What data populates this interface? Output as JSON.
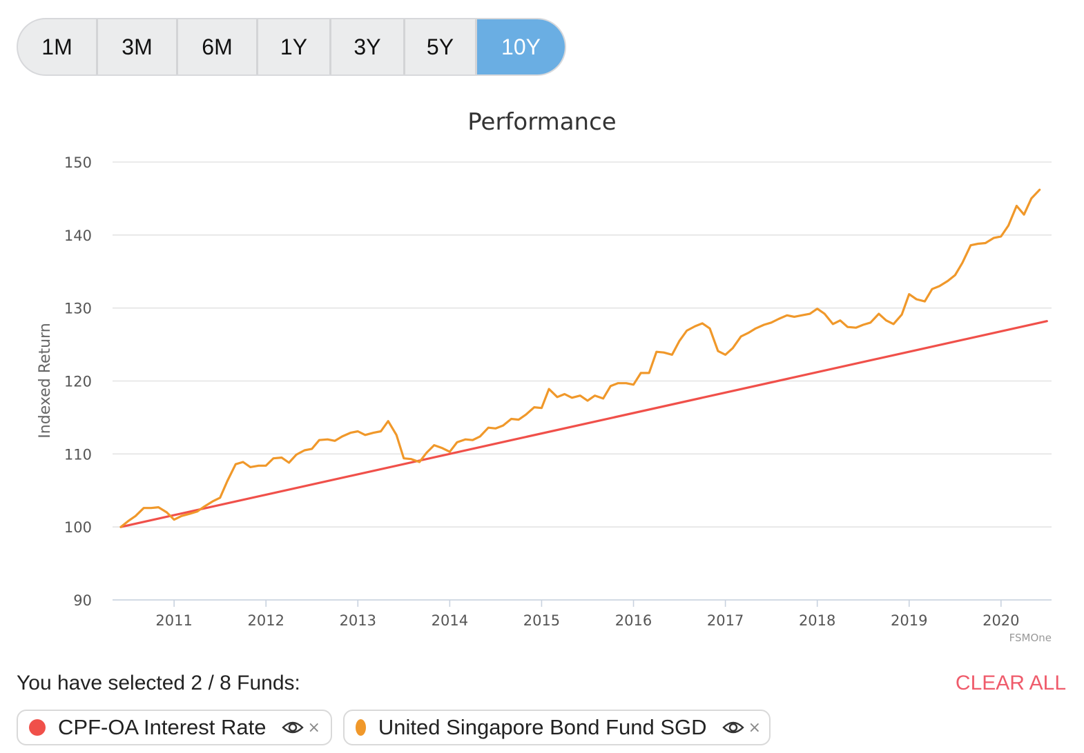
{
  "range_buttons": [
    {
      "label": "1M",
      "active": false
    },
    {
      "label": "3M",
      "active": false
    },
    {
      "label": "6M",
      "active": false
    },
    {
      "label": "1Y",
      "active": false
    },
    {
      "label": "3Y",
      "active": false
    },
    {
      "label": "5Y",
      "active": false
    },
    {
      "label": "10Y",
      "active": true
    }
  ],
  "chart_data": {
    "type": "line",
    "title": "Performance",
    "xlabel": "",
    "ylabel": "Indexed Return",
    "credit": "FSMOne",
    "ylim": [
      90,
      150
    ],
    "yticks": [
      90,
      100,
      110,
      120,
      130,
      140,
      150
    ],
    "xlim": [
      2010.33,
      2020.55
    ],
    "xticks": [
      2011,
      2012,
      2013,
      2014,
      2015,
      2016,
      2017,
      2018,
      2019,
      2020
    ],
    "grid": true,
    "series": [
      {
        "name": "CPF-OA Interest Rate",
        "color": "#f0504a",
        "points": [
          [
            2010.42,
            100.0
          ],
          [
            2020.5,
            128.2
          ]
        ]
      },
      {
        "name": "United Singapore Bond Fund SGD",
        "color": "#f0982a",
        "points": [
          [
            2010.42,
            100.0
          ],
          [
            2010.5,
            100.8
          ],
          [
            2010.58,
            101.5
          ],
          [
            2010.67,
            102.6
          ],
          [
            2010.75,
            102.6
          ],
          [
            2010.83,
            102.7
          ],
          [
            2010.92,
            102.0
          ],
          [
            2011.0,
            101.0
          ],
          [
            2011.08,
            101.5
          ],
          [
            2011.17,
            101.8
          ],
          [
            2011.25,
            102.1
          ],
          [
            2011.33,
            102.8
          ],
          [
            2011.42,
            103.5
          ],
          [
            2011.5,
            104.0
          ],
          [
            2011.58,
            106.3
          ],
          [
            2011.67,
            108.6
          ],
          [
            2011.75,
            108.9
          ],
          [
            2011.83,
            108.2
          ],
          [
            2011.92,
            108.4
          ],
          [
            2012.0,
            108.4
          ],
          [
            2012.08,
            109.4
          ],
          [
            2012.17,
            109.5
          ],
          [
            2012.25,
            108.8
          ],
          [
            2012.33,
            109.9
          ],
          [
            2012.42,
            110.5
          ],
          [
            2012.5,
            110.7
          ],
          [
            2012.58,
            111.9
          ],
          [
            2012.67,
            112.0
          ],
          [
            2012.75,
            111.8
          ],
          [
            2012.83,
            112.4
          ],
          [
            2012.92,
            112.9
          ],
          [
            2013.0,
            113.1
          ],
          [
            2013.08,
            112.6
          ],
          [
            2013.17,
            112.9
          ],
          [
            2013.25,
            113.1
          ],
          [
            2013.33,
            114.5
          ],
          [
            2013.42,
            112.6
          ],
          [
            2013.5,
            109.4
          ],
          [
            2013.58,
            109.3
          ],
          [
            2013.67,
            108.9
          ],
          [
            2013.75,
            110.2
          ],
          [
            2013.83,
            111.2
          ],
          [
            2013.92,
            110.8
          ],
          [
            2014.0,
            110.3
          ],
          [
            2014.08,
            111.6
          ],
          [
            2014.17,
            112.0
          ],
          [
            2014.25,
            111.9
          ],
          [
            2014.33,
            112.4
          ],
          [
            2014.42,
            113.6
          ],
          [
            2014.5,
            113.5
          ],
          [
            2014.58,
            113.9
          ],
          [
            2014.67,
            114.8
          ],
          [
            2014.75,
            114.7
          ],
          [
            2014.83,
            115.4
          ],
          [
            2014.92,
            116.4
          ],
          [
            2015.0,
            116.3
          ],
          [
            2015.08,
            118.9
          ],
          [
            2015.17,
            117.8
          ],
          [
            2015.25,
            118.2
          ],
          [
            2015.33,
            117.7
          ],
          [
            2015.42,
            118.0
          ],
          [
            2015.5,
            117.3
          ],
          [
            2015.58,
            118.0
          ],
          [
            2015.67,
            117.6
          ],
          [
            2015.75,
            119.3
          ],
          [
            2015.83,
            119.7
          ],
          [
            2015.92,
            119.7
          ],
          [
            2016.0,
            119.5
          ],
          [
            2016.08,
            121.1
          ],
          [
            2016.17,
            121.1
          ],
          [
            2016.25,
            124.0
          ],
          [
            2016.33,
            123.9
          ],
          [
            2016.42,
            123.6
          ],
          [
            2016.5,
            125.5
          ],
          [
            2016.58,
            126.9
          ],
          [
            2016.67,
            127.5
          ],
          [
            2016.75,
            127.9
          ],
          [
            2016.83,
            127.2
          ],
          [
            2016.92,
            124.1
          ],
          [
            2017.0,
            123.6
          ],
          [
            2017.08,
            124.5
          ],
          [
            2017.17,
            126.1
          ],
          [
            2017.25,
            126.6
          ],
          [
            2017.33,
            127.2
          ],
          [
            2017.42,
            127.7
          ],
          [
            2017.5,
            128.0
          ],
          [
            2017.58,
            128.5
          ],
          [
            2017.67,
            129.0
          ],
          [
            2017.75,
            128.8
          ],
          [
            2017.83,
            129.0
          ],
          [
            2017.92,
            129.2
          ],
          [
            2018.0,
            129.9
          ],
          [
            2018.08,
            129.2
          ],
          [
            2018.17,
            127.8
          ],
          [
            2018.25,
            128.3
          ],
          [
            2018.33,
            127.4
          ],
          [
            2018.42,
            127.3
          ],
          [
            2018.5,
            127.7
          ],
          [
            2018.58,
            128.0
          ],
          [
            2018.67,
            129.2
          ],
          [
            2018.75,
            128.3
          ],
          [
            2018.83,
            127.8
          ],
          [
            2018.92,
            129.1
          ],
          [
            2019.0,
            131.9
          ],
          [
            2019.08,
            131.2
          ],
          [
            2019.17,
            130.9
          ],
          [
            2019.25,
            132.6
          ],
          [
            2019.33,
            133.0
          ],
          [
            2019.42,
            133.7
          ],
          [
            2019.5,
            134.5
          ],
          [
            2019.58,
            136.2
          ],
          [
            2019.67,
            138.6
          ],
          [
            2019.75,
            138.8
          ],
          [
            2019.83,
            138.9
          ],
          [
            2019.92,
            139.6
          ],
          [
            2020.0,
            139.8
          ],
          [
            2020.08,
            141.3
          ],
          [
            2020.17,
            144.0
          ],
          [
            2020.25,
            142.8
          ],
          [
            2020.33,
            145.0
          ],
          [
            2020.42,
            146.2
          ]
        ]
      }
    ]
  },
  "selection": {
    "summary": "You have selected 2 / 8 Funds:",
    "clear_label": "CLEAR ALL"
  },
  "chips": [
    {
      "label": "CPF-OA Interest Rate",
      "color": "#f0504a",
      "close": "×"
    },
    {
      "label": "United Singapore Bond Fund SGD",
      "color": "#f0982a",
      "close": "×"
    }
  ]
}
